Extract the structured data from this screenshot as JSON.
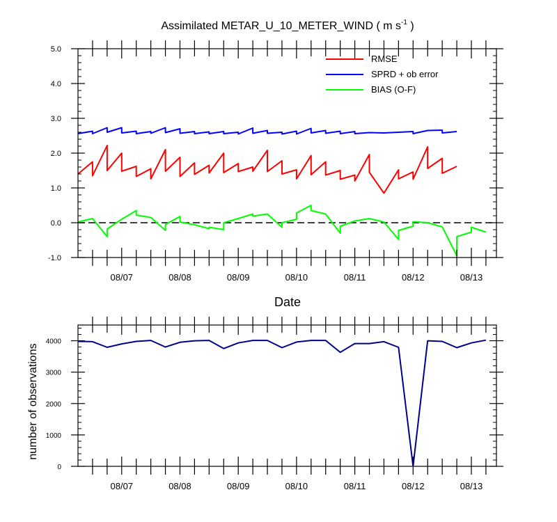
{
  "chart_data": [
    {
      "type": "line",
      "title": "Assimilated METAR_U_10_METER_WIND ( m s",
      "title_superscript": "-1",
      "title_suffix": " )",
      "xlabel": "Date",
      "ylabel": "",
      "ylim": [
        -1.0,
        5.0
      ],
      "yticks": [
        "-1.0",
        "0.0",
        "1.0",
        "2.0",
        "3.0",
        "4.0",
        "5.0"
      ],
      "xlim": [
        0,
        7.18
      ],
      "xtick_labels": [
        "08/07",
        "08/08",
        "08/09",
        "08/10",
        "08/11",
        "08/12",
        "08/13"
      ],
      "xtick_positions": [
        0.75,
        1.75,
        2.75,
        3.75,
        4.75,
        5.75,
        6.75
      ],
      "zero_line": {
        "style": "dashed",
        "color": "#000000"
      },
      "grid": false,
      "legend_position": "top-right",
      "series": [
        {
          "name": "RMSE",
          "color": "#ff0000",
          "points": [
            [
              0.0,
              1.4
            ],
            [
              0.25,
              1.75
            ],
            [
              0.25,
              1.35
            ],
            [
              0.5,
              2.22
            ],
            [
              0.5,
              1.5
            ],
            [
              0.75,
              2.0
            ],
            [
              0.75,
              1.48
            ],
            [
              1.0,
              1.62
            ],
            [
              1.0,
              1.33
            ],
            [
              1.25,
              1.55
            ],
            [
              1.25,
              1.26
            ],
            [
              1.5,
              2.1
            ],
            [
              1.5,
              1.48
            ],
            [
              1.75,
              1.88
            ],
            [
              1.75,
              1.33
            ],
            [
              2.0,
              1.72
            ],
            [
              2.0,
              1.39
            ],
            [
              2.25,
              1.65
            ],
            [
              2.25,
              1.43
            ],
            [
              2.5,
              2.0
            ],
            [
              2.5,
              1.44
            ],
            [
              2.75,
              1.7
            ],
            [
              2.75,
              1.47
            ],
            [
              3.0,
              1.6
            ],
            [
              3.0,
              1.48
            ],
            [
              3.25,
              2.08
            ],
            [
              3.25,
              1.47
            ],
            [
              3.5,
              1.78
            ],
            [
              3.5,
              1.4
            ],
            [
              3.75,
              1.52
            ],
            [
              3.75,
              1.26
            ],
            [
              4.0,
              1.93
            ],
            [
              4.0,
              1.38
            ],
            [
              4.25,
              1.75
            ],
            [
              4.25,
              1.37
            ],
            [
              4.5,
              1.5
            ],
            [
              4.5,
              1.25
            ],
            [
              4.75,
              1.37
            ],
            [
              4.75,
              1.2
            ],
            [
              5.0,
              1.96
            ],
            [
              5.0,
              1.45
            ],
            [
              5.25,
              0.85
            ],
            [
              5.5,
              1.52
            ],
            [
              5.5,
              1.26
            ],
            [
              5.75,
              1.46
            ],
            [
              5.75,
              1.25
            ],
            [
              6.0,
              2.18
            ],
            [
              6.0,
              1.56
            ],
            [
              6.25,
              1.85
            ],
            [
              6.25,
              1.42
            ],
            [
              6.5,
              1.62
            ]
          ]
        },
        {
          "name": "SPRD + ob error",
          "color": "#0000ff",
          "points": [
            [
              0.0,
              2.56
            ],
            [
              0.25,
              2.63
            ],
            [
              0.25,
              2.56
            ],
            [
              0.5,
              2.73
            ],
            [
              0.5,
              2.6
            ],
            [
              0.75,
              2.73
            ],
            [
              0.75,
              2.58
            ],
            [
              1.0,
              2.63
            ],
            [
              1.0,
              2.56
            ],
            [
              1.25,
              2.62
            ],
            [
              1.25,
              2.57
            ],
            [
              1.5,
              2.73
            ],
            [
              1.5,
              2.59
            ],
            [
              1.75,
              2.7
            ],
            [
              1.75,
              2.57
            ],
            [
              2.0,
              2.62
            ],
            [
              2.0,
              2.56
            ],
            [
              2.25,
              2.61
            ],
            [
              2.25,
              2.56
            ],
            [
              2.5,
              2.62
            ],
            [
              2.5,
              2.56
            ],
            [
              2.75,
              2.6
            ],
            [
              2.75,
              2.55
            ],
            [
              3.0,
              2.72
            ],
            [
              3.0,
              2.57
            ],
            [
              3.25,
              2.65
            ],
            [
              3.25,
              2.57
            ],
            [
              3.5,
              2.6
            ],
            [
              3.5,
              2.55
            ],
            [
              3.75,
              2.63
            ],
            [
              3.75,
              2.55
            ],
            [
              4.0,
              2.71
            ],
            [
              4.0,
              2.58
            ],
            [
              4.25,
              2.65
            ],
            [
              4.25,
              2.57
            ],
            [
              4.5,
              2.63
            ],
            [
              4.5,
              2.56
            ],
            [
              4.75,
              2.62
            ],
            [
              4.75,
              2.56
            ],
            [
              5.0,
              2.59
            ],
            [
              5.25,
              2.58
            ],
            [
              5.5,
              2.6
            ],
            [
              5.75,
              2.62
            ],
            [
              5.75,
              2.56
            ],
            [
              6.0,
              2.65
            ],
            [
              6.25,
              2.66
            ],
            [
              6.25,
              2.58
            ],
            [
              6.5,
              2.62
            ]
          ]
        },
        {
          "name": "BIAS (O-F)",
          "color": "#00ff00",
          "points": [
            [
              0.0,
              0.02
            ],
            [
              0.25,
              0.12
            ],
            [
              0.5,
              -0.4
            ],
            [
              0.5,
              -0.18
            ],
            [
              0.75,
              0.1
            ],
            [
              1.0,
              0.35
            ],
            [
              1.0,
              0.22
            ],
            [
              1.25,
              0.15
            ],
            [
              1.5,
              -0.22
            ],
            [
              1.5,
              -0.05
            ],
            [
              1.75,
              0.18
            ],
            [
              1.75,
              0.02
            ],
            [
              2.0,
              -0.06
            ],
            [
              2.25,
              -0.17
            ],
            [
              2.25,
              -0.13
            ],
            [
              2.5,
              -0.2
            ],
            [
              2.5,
              0.0
            ],
            [
              2.75,
              0.12
            ],
            [
              3.0,
              0.25
            ],
            [
              3.0,
              0.19
            ],
            [
              3.25,
              0.25
            ],
            [
              3.5,
              -0.13
            ],
            [
              3.5,
              0.0
            ],
            [
              3.75,
              0.1
            ],
            [
              3.75,
              0.28
            ],
            [
              4.0,
              0.5
            ],
            [
              4.0,
              0.35
            ],
            [
              4.25,
              0.25
            ],
            [
              4.5,
              -0.3
            ],
            [
              4.5,
              -0.1
            ],
            [
              4.75,
              0.05
            ],
            [
              5.0,
              0.12
            ],
            [
              5.25,
              0.02
            ],
            [
              5.5,
              -0.48
            ],
            [
              5.5,
              -0.22
            ],
            [
              5.75,
              -0.1
            ],
            [
              5.75,
              0.03
            ],
            [
              6.0,
              0.0
            ],
            [
              6.25,
              -0.12
            ],
            [
              6.5,
              -0.95
            ],
            [
              6.5,
              -0.4
            ],
            [
              6.75,
              -0.27
            ],
            [
              6.75,
              -0.13
            ],
            [
              7.0,
              -0.27
            ]
          ]
        }
      ]
    },
    {
      "type": "line",
      "title": "",
      "xlabel": "",
      "ylabel": "number of observations",
      "ylim": [
        0,
        4500
      ],
      "yticks": [
        "0",
        "1000",
        "2000",
        "3000",
        "4000"
      ],
      "xlim": [
        0,
        7.18
      ],
      "xtick_labels": [
        "08/07",
        "08/08",
        "08/09",
        "08/10",
        "08/11",
        "08/12",
        "08/13"
      ],
      "xtick_positions": [
        0.75,
        1.75,
        2.75,
        3.75,
        4.75,
        5.75,
        6.75
      ],
      "grid": false,
      "series": [
        {
          "color": "#00008b",
          "points": [
            [
              0.0,
              3980
            ],
            [
              0.25,
              3970
            ],
            [
              0.5,
              3790
            ],
            [
              0.75,
              3900
            ],
            [
              1.0,
              3980
            ],
            [
              1.25,
              4010
            ],
            [
              1.5,
              3800
            ],
            [
              1.75,
              3950
            ],
            [
              2.0,
              4000
            ],
            [
              2.25,
              4010
            ],
            [
              2.5,
              3750
            ],
            [
              2.75,
              3930
            ],
            [
              3.0,
              4010
            ],
            [
              3.25,
              4010
            ],
            [
              3.5,
              3780
            ],
            [
              3.75,
              3960
            ],
            [
              4.0,
              4010
            ],
            [
              4.25,
              4010
            ],
            [
              4.5,
              3630
            ],
            [
              4.75,
              3910
            ],
            [
              5.0,
              3910
            ],
            [
              5.25,
              3970
            ],
            [
              5.5,
              3790
            ],
            [
              5.75,
              0
            ],
            [
              6.0,
              4000
            ],
            [
              6.25,
              3980
            ],
            [
              6.5,
              3780
            ],
            [
              6.75,
              3930
            ],
            [
              7.0,
              4020
            ]
          ]
        }
      ]
    }
  ]
}
